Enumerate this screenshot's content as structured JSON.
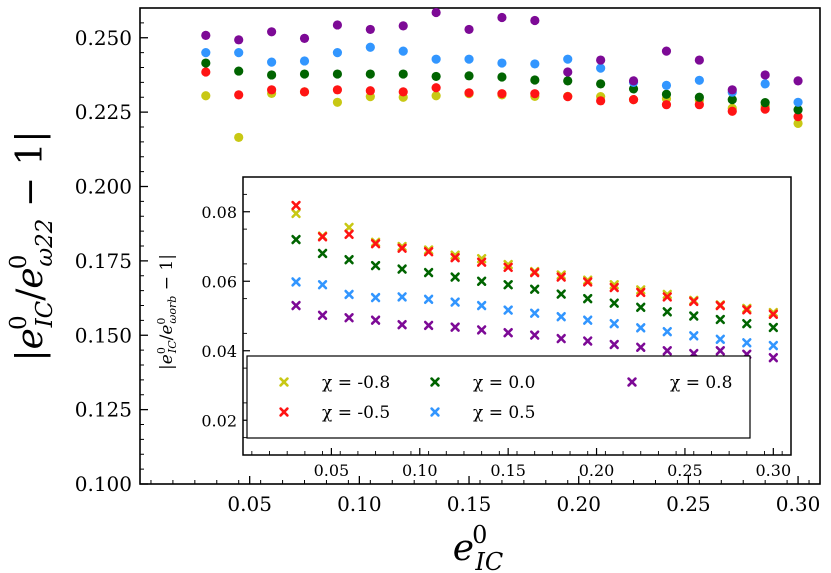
{
  "chart_data": [
    {
      "type": "scatter",
      "title": "",
      "xlabel": "e^0_IC",
      "ylabel": "|e^0_IC/e^0_ω22 − 1|",
      "xlim": [
        0.0,
        0.31
      ],
      "ylim": [
        0.1,
        0.26
      ],
      "xticks": [
        "0.05",
        "0.10",
        "0.15",
        "0.20",
        "0.25",
        "0.30"
      ],
      "yticks": [
        "0.100",
        "0.125",
        "0.150",
        "0.175",
        "0.200",
        "0.225",
        "0.250"
      ],
      "marker": "circle",
      "grid": false,
      "x": [
        0.03,
        0.045,
        0.06,
        0.075,
        0.09,
        0.105,
        0.12,
        0.135,
        0.15,
        0.165,
        0.18,
        0.195,
        0.21,
        0.225,
        0.24,
        0.255,
        0.27,
        0.285,
        0.3
      ],
      "series": [
        {
          "name": "χ = -0.8",
          "color": "#c8c814",
          "values": [
            0.2305,
            0.2165,
            0.2313,
            0.2318,
            0.2283,
            0.2302,
            0.23,
            0.2305,
            0.2312,
            0.2308,
            0.2303,
            0.2303,
            0.2302,
            0.2292,
            0.2295,
            0.229,
            0.2263,
            0.227,
            0.2212
          ]
        },
        {
          "name": "χ = -0.5",
          "color": "#ff1414",
          "values": [
            0.2385,
            0.2308,
            0.2325,
            0.2318,
            0.2325,
            0.2322,
            0.2318,
            0.2332,
            0.2315,
            0.2312,
            0.2312,
            0.2302,
            0.2288,
            0.2292,
            0.2275,
            0.2275,
            0.2253,
            0.226,
            0.2235
          ]
        },
        {
          "name": "χ = 0.0",
          "color": "#006400",
          "values": [
            0.2415,
            0.2388,
            0.2375,
            0.2378,
            0.2378,
            0.2378,
            0.2378,
            0.237,
            0.2372,
            0.2368,
            0.2358,
            0.2355,
            0.2345,
            0.2328,
            0.231,
            0.23,
            0.2292,
            0.2282,
            0.2258
          ]
        },
        {
          "name": "χ = 0.5",
          "color": "#3296ff",
          "values": [
            0.245,
            0.245,
            0.2418,
            0.2422,
            0.245,
            0.2468,
            0.2455,
            0.2428,
            0.2428,
            0.2415,
            0.2412,
            0.2428,
            0.2398,
            0.235,
            0.234,
            0.2357,
            0.2317,
            0.2345,
            0.2283
          ]
        },
        {
          "name": "χ = 0.8",
          "color": "#7d0a96",
          "values": [
            0.2508,
            0.2493,
            0.252,
            0.2498,
            0.2543,
            0.2528,
            0.254,
            0.2585,
            0.2528,
            0.2568,
            0.2558,
            0.2385,
            0.2425,
            0.2355,
            0.2455,
            0.2425,
            0.2325,
            0.2375,
            0.2355
          ]
        }
      ]
    },
    {
      "type": "scatter",
      "title": "",
      "xlabel": "",
      "ylabel": "|e^0_IC/e^0_ωorb − 1|",
      "xlim": [
        0.0,
        0.31
      ],
      "ylim": [
        0.01,
        0.09
      ],
      "xticks": [
        "0.05",
        "0.10",
        "0.15",
        "0.20",
        "0.25",
        "0.30"
      ],
      "yticks": [
        "0.02",
        "0.04",
        "0.06",
        "0.08"
      ],
      "marker": "x",
      "grid": false,
      "legend_position": "bottom",
      "x": [
        0.03,
        0.045,
        0.06,
        0.075,
        0.09,
        0.105,
        0.12,
        0.135,
        0.15,
        0.165,
        0.18,
        0.195,
        0.21,
        0.225,
        0.24,
        0.255,
        0.27,
        0.285,
        0.3
      ],
      "series": [
        {
          "name": "χ = -0.8",
          "color": "#c8c814",
          "values": [
            0.0795,
            0.073,
            0.0755,
            0.0712,
            0.07,
            0.069,
            0.0675,
            0.0665,
            0.0648,
            0.0628,
            0.0618,
            0.0603,
            0.059,
            0.0575,
            0.0562,
            0.0545,
            0.0532,
            0.0522,
            0.051
          ]
        },
        {
          "name": "χ = -0.5",
          "color": "#ff1414",
          "values": [
            0.0818,
            0.0728,
            0.0735,
            0.0708,
            0.0695,
            0.0685,
            0.0668,
            0.0655,
            0.064,
            0.0625,
            0.0612,
            0.0598,
            0.0582,
            0.0568,
            0.0555,
            0.0542,
            0.053,
            0.0518,
            0.0505
          ]
        },
        {
          "name": "χ = 0.0",
          "color": "#006400",
          "values": [
            0.072,
            0.068,
            0.0662,
            0.0645,
            0.0635,
            0.0625,
            0.0612,
            0.06,
            0.059,
            0.0577,
            0.0563,
            0.055,
            0.0537,
            0.0525,
            0.0512,
            0.05,
            0.049,
            0.0478,
            0.0467
          ]
        },
        {
          "name": "χ = 0.5",
          "color": "#3296ff",
          "values": [
            0.0598,
            0.059,
            0.0562,
            0.0553,
            0.0555,
            0.0548,
            0.054,
            0.053,
            0.0517,
            0.0508,
            0.0498,
            0.0488,
            0.0478,
            0.0466,
            0.0455,
            0.0443,
            0.0433,
            0.0423,
            0.0415
          ]
        },
        {
          "name": "χ = 0.8",
          "color": "#7d0a96",
          "values": [
            0.053,
            0.0502,
            0.0495,
            0.0488,
            0.0475,
            0.0473,
            0.0468,
            0.046,
            0.0452,
            0.0445,
            0.0435,
            0.0428,
            0.0418,
            0.041,
            0.04,
            0.0392,
            0.04,
            0.039,
            0.038
          ]
        }
      ],
      "legend": [
        {
          "label": "χ = -0.8",
          "color": "#c8c814"
        },
        {
          "label": "χ = 0.0",
          "color": "#006400"
        },
        {
          "label": "χ = 0.8",
          "color": "#7d0a96"
        },
        {
          "label": "χ = -0.5",
          "color": "#ff1414"
        },
        {
          "label": "χ = 0.5",
          "color": "#3296ff"
        }
      ]
    }
  ]
}
